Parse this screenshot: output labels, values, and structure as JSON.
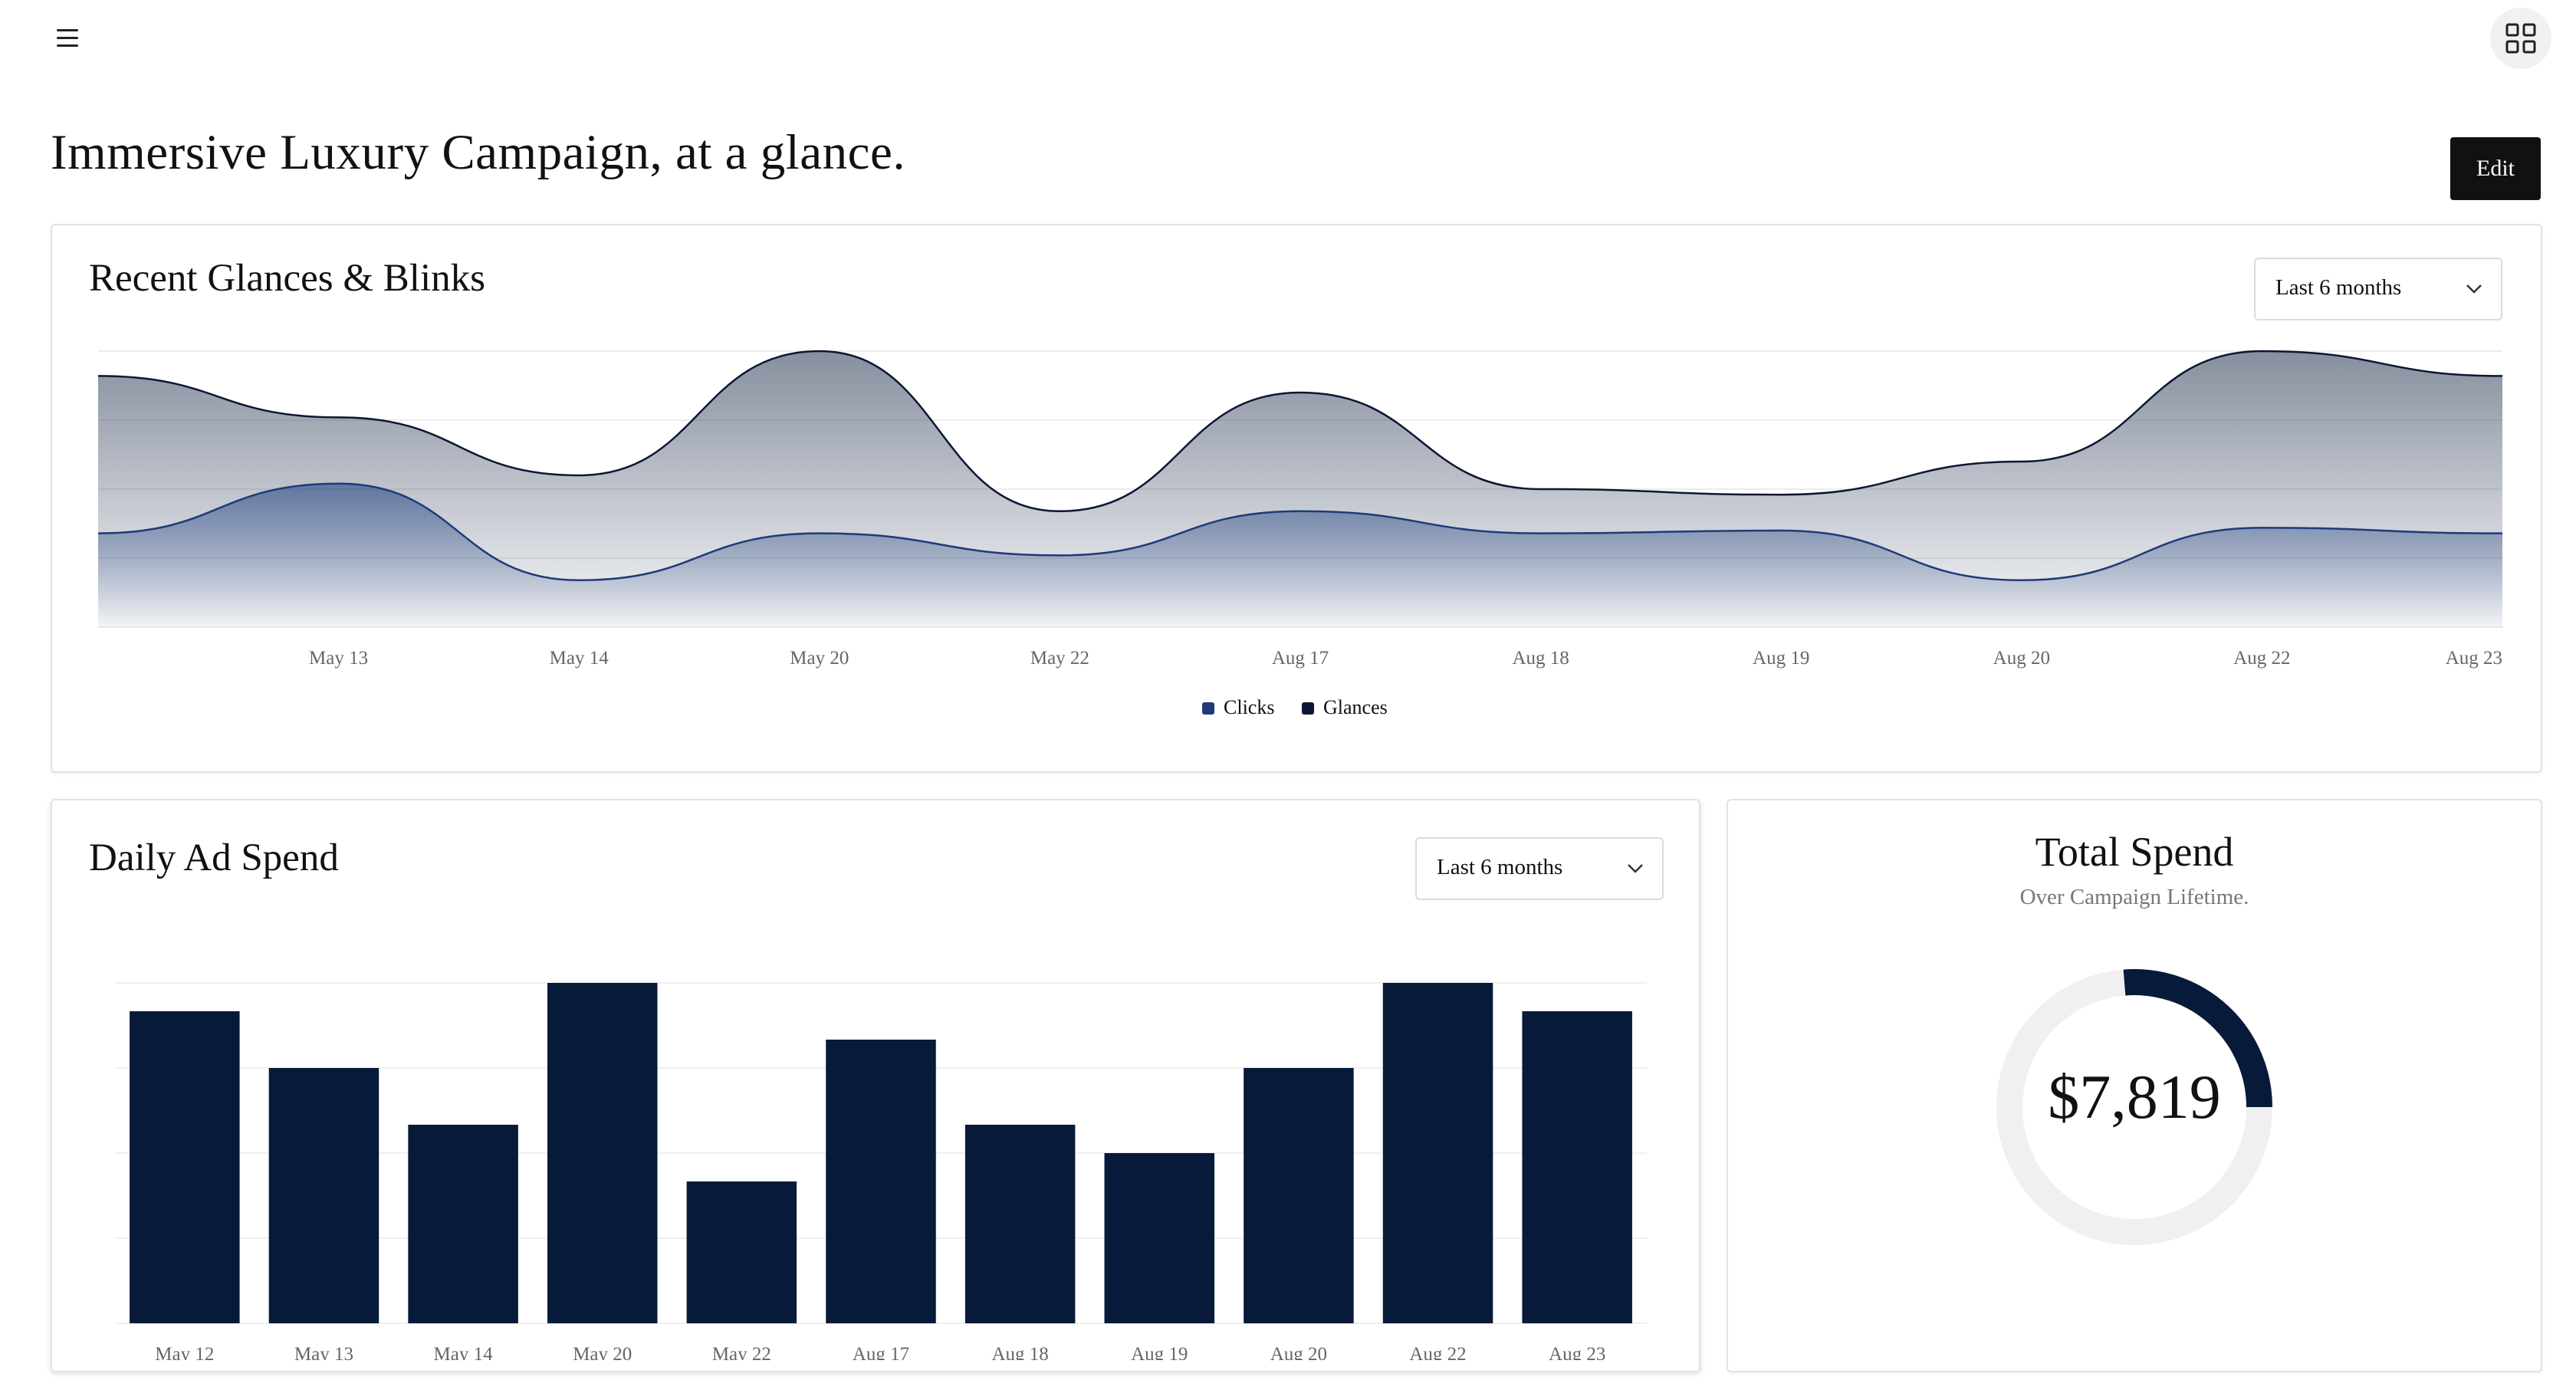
{
  "header": {
    "menu_icon": "hamburger-menu-icon",
    "apps_icon": "grid-apps-icon",
    "title": "Immersive Luxury Campaign, at a glance.",
    "edit_label": "Edit"
  },
  "glances_card": {
    "title": "Recent Glances & Blinks",
    "range_select": "Last 6 months",
    "chart_data": {
      "type": "area",
      "categories": [
        "",
        "May 13",
        "May 14",
        "May 20",
        "May 22",
        "Aug 17",
        "Aug 18",
        "Aug 19",
        "Aug 20",
        "Aug 22",
        "Aug 23"
      ],
      "ylim": [
        0,
        100
      ],
      "grid": true,
      "legend": "bottom-center",
      "series": [
        {
          "name": "Clicks",
          "color": "#1f3a7a",
          "values": [
            34,
            52,
            17,
            34,
            26,
            42,
            34,
            35,
            17,
            36,
            34
          ]
        },
        {
          "name": "Glances",
          "color": "#0b1733",
          "values": [
            91,
            76,
            55,
            100,
            42,
            85,
            50,
            48,
            60,
            100,
            91
          ]
        }
      ]
    }
  },
  "spend_card": {
    "title": "Daily Ad Spend",
    "range_select": "Last 6 months",
    "chart_data": {
      "type": "bar",
      "categories": [
        "May 12",
        "May 13",
        "May 14",
        "May 20",
        "May 22",
        "Aug 17",
        "Aug 18",
        "Aug 19",
        "Aug 20",
        "Aug 22",
        "Aug 23"
      ],
      "values": [
        110,
        90,
        70,
        120,
        50,
        100,
        70,
        60,
        90,
        120,
        110
      ],
      "ylim": [
        0,
        120
      ],
      "grid": true,
      "color": "#081a3a"
    }
  },
  "total_card": {
    "title": "Total Spend",
    "subtitle": "Over Campaign Lifetime.",
    "value": "$7,819",
    "progress": 0.25,
    "ring_color": "#081a3a",
    "track_color": "#f0f0f0"
  }
}
